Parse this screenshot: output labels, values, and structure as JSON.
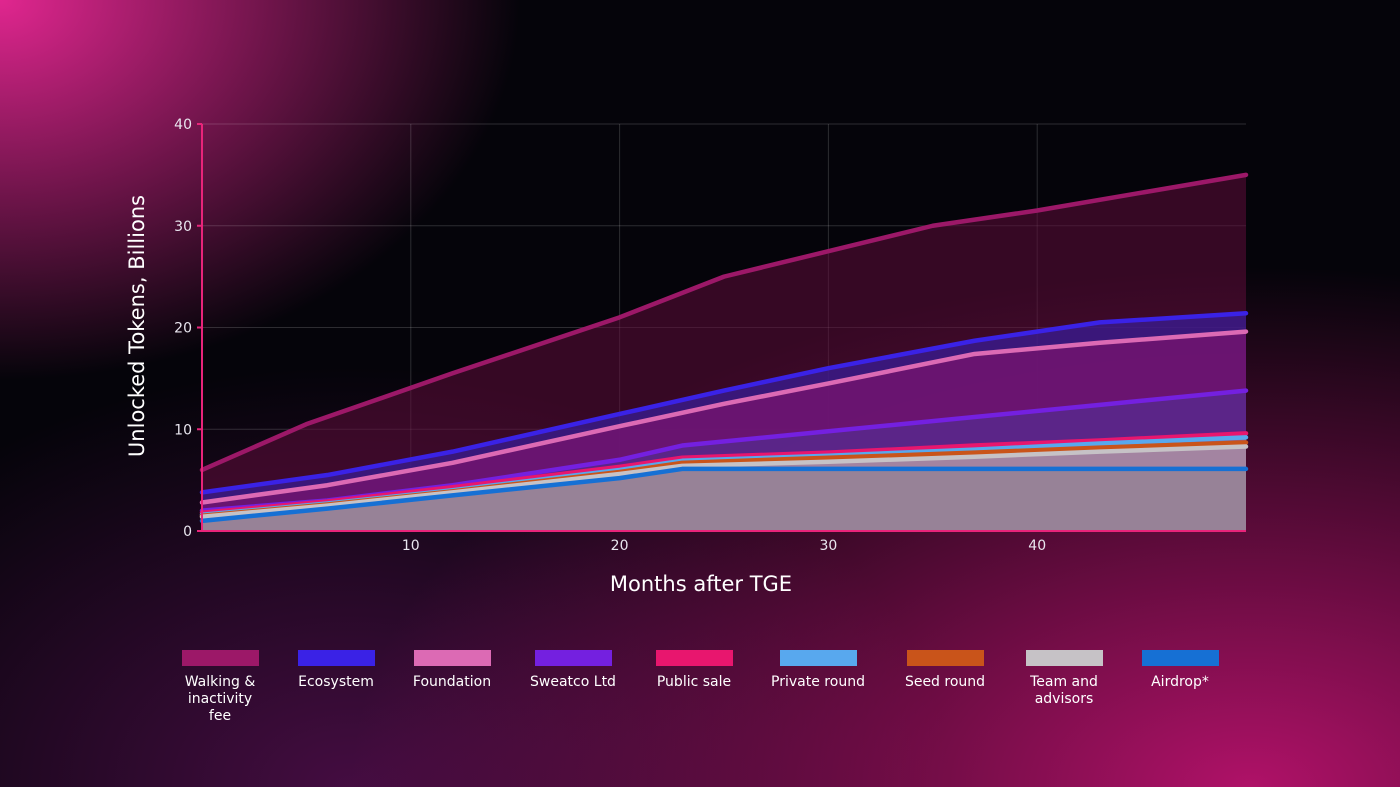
{
  "chart_data": {
    "type": "area",
    "xlabel": "Months after TGE",
    "ylabel": "Unlocked Tokens, Billions",
    "xlim": [
      0,
      50
    ],
    "ylim": [
      0,
      40
    ],
    "xticks": [
      10,
      20,
      30,
      40
    ],
    "yticks": [
      0,
      10,
      20,
      30,
      40
    ],
    "grid": true,
    "legend_position": "bottom",
    "series": [
      {
        "name": "Walking &\ninactivity\nfee",
        "color": "#9c1868",
        "fill": "rgba(95,12,58,0.55)",
        "points": [
          [
            0,
            6
          ],
          [
            5,
            10.5
          ],
          [
            12,
            15.5
          ],
          [
            20,
            21
          ],
          [
            25,
            25
          ],
          [
            35,
            30
          ],
          [
            40,
            31.5
          ],
          [
            50,
            35
          ]
        ]
      },
      {
        "name": "Ecosystem",
        "color": "#3a22e6",
        "fill": "rgba(58,28,150,0.75)",
        "points": [
          [
            0,
            3.8
          ],
          [
            6,
            5.5
          ],
          [
            12,
            7.8
          ],
          [
            20,
            11.5
          ],
          [
            25,
            13.8
          ],
          [
            30,
            16
          ],
          [
            37,
            18.7
          ],
          [
            43,
            20.5
          ],
          [
            50,
            21.4
          ]
        ]
      },
      {
        "name": "Foundation",
        "color": "#dc6ab4",
        "fill": "rgba(118,20,110,0.8)",
        "points": [
          [
            0,
            2.8
          ],
          [
            6,
            4.5
          ],
          [
            12,
            6.7
          ],
          [
            20,
            10.3
          ],
          [
            25,
            12.5
          ],
          [
            30,
            14.5
          ],
          [
            37,
            17.4
          ],
          [
            43,
            18.5
          ],
          [
            50,
            19.6
          ]
        ]
      },
      {
        "name": "Sweatco Ltd",
        "color": "#7420e0",
        "fill": "rgba(88,40,140,0.85)",
        "points": [
          [
            0,
            2
          ],
          [
            6,
            3
          ],
          [
            12,
            4.5
          ],
          [
            20,
            7
          ],
          [
            23,
            8.4
          ],
          [
            30,
            9.8
          ],
          [
            37,
            11.2
          ],
          [
            43,
            12.4
          ],
          [
            50,
            13.8
          ]
        ]
      },
      {
        "name": "Public sale",
        "color": "#e8166e",
        "fill": "rgba(140,70,130,0.75)",
        "points": [
          [
            0,
            1.8
          ],
          [
            6,
            2.9
          ],
          [
            12,
            4.3
          ],
          [
            20,
            6.3
          ],
          [
            23,
            7.2
          ],
          [
            30,
            7.7
          ],
          [
            37,
            8.4
          ],
          [
            43,
            8.9
          ],
          [
            50,
            9.6
          ]
        ]
      },
      {
        "name": "Private round",
        "color": "#58a8ee",
        "fill": "rgba(150,110,150,0.7)",
        "points": [
          [
            0,
            1.6
          ],
          [
            6,
            2.7
          ],
          [
            12,
            4
          ],
          [
            20,
            6
          ],
          [
            23,
            6.9
          ],
          [
            30,
            7.4
          ],
          [
            37,
            8
          ],
          [
            43,
            8.6
          ],
          [
            50,
            9.2
          ]
        ]
      },
      {
        "name": "Seed round",
        "color": "#c9541a",
        "fill": "rgba(150,115,140,0.7)",
        "points": [
          [
            0,
            1.5
          ],
          [
            6,
            2.6
          ],
          [
            12,
            3.9
          ],
          [
            20,
            5.8
          ],
          [
            23,
            6.7
          ],
          [
            30,
            7.2
          ],
          [
            37,
            7.7
          ],
          [
            43,
            8.2
          ],
          [
            50,
            8.7
          ]
        ]
      },
      {
        "name": "Team and\nadvisors",
        "color": "#c6c2c6",
        "fill": "rgba(168,140,168,0.75)",
        "points": [
          [
            0,
            1.4
          ],
          [
            6,
            2.5
          ],
          [
            12,
            3.8
          ],
          [
            20,
            5.6
          ],
          [
            23,
            6.4
          ],
          [
            30,
            6.8
          ],
          [
            37,
            7.3
          ],
          [
            43,
            7.8
          ],
          [
            50,
            8.3
          ]
        ]
      },
      {
        "name": "Airdrop*",
        "color": "#1670d4",
        "fill": "rgba(150,130,150,0.9)",
        "points": [
          [
            0,
            1
          ],
          [
            6,
            2.2
          ],
          [
            12,
            3.5
          ],
          [
            20,
            5.2
          ],
          [
            23,
            6.1
          ],
          [
            30,
            6.1
          ],
          [
            37,
            6.1
          ],
          [
            43,
            6.1
          ],
          [
            50,
            6.1
          ]
        ]
      }
    ]
  }
}
